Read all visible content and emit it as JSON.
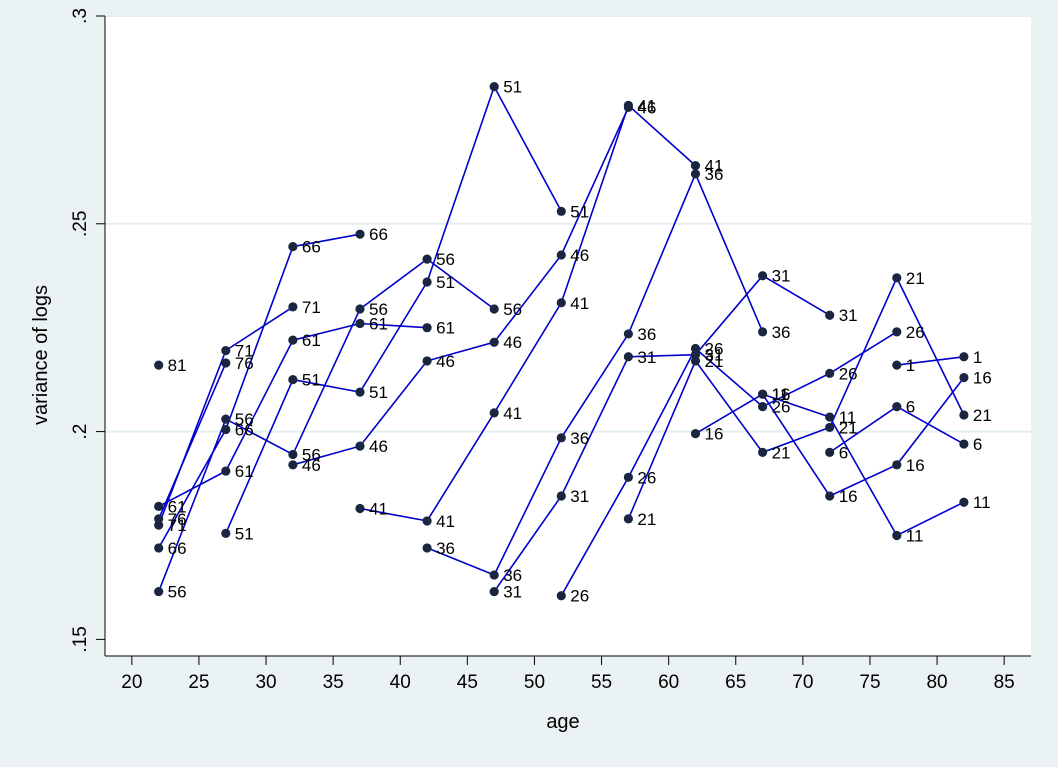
{
  "chart_data": {
    "type": "line",
    "xlabel": "age",
    "ylabel": "variance of logs",
    "xlim": [
      18,
      87
    ],
    "ylim": [
      0.146,
      0.3
    ],
    "x_ticks": [
      20,
      25,
      30,
      35,
      40,
      45,
      50,
      55,
      60,
      65,
      70,
      75,
      80,
      85
    ],
    "x_tick_labels": [
      "20",
      "25",
      "30",
      "35",
      "40",
      "45",
      "50",
      "55",
      "60",
      "65",
      "70",
      "75",
      "80",
      "85"
    ],
    "y_ticks": [
      0.15,
      0.2,
      0.25,
      0.3
    ],
    "y_tick_labels": [
      ".15",
      ".2",
      ".25",
      ".3"
    ],
    "grid": "horizontal",
    "line_color": "#0000cc",
    "marker_color": "#1a2640",
    "series": [
      {
        "label": "1",
        "points": [
          [
            77,
            0.216
          ],
          [
            82,
            0.218
          ]
        ]
      },
      {
        "label": "6",
        "points": [
          [
            72,
            0.195
          ],
          [
            77,
            0.206
          ],
          [
            82,
            0.197
          ]
        ]
      },
      {
        "label": "11",
        "points": [
          [
            67,
            0.209
          ],
          [
            72,
            0.2035
          ],
          [
            77,
            0.175
          ],
          [
            82,
            0.183
          ]
        ]
      },
      {
        "label": "16",
        "points": [
          [
            62,
            0.1995
          ],
          [
            67,
            0.209
          ],
          [
            72,
            0.1845
          ],
          [
            77,
            0.192
          ],
          [
            82,
            0.213
          ]
        ]
      },
      {
        "label": "21",
        "points": [
          [
            57,
            0.179
          ],
          [
            62,
            0.217
          ],
          [
            67,
            0.195
          ],
          [
            72,
            0.201
          ],
          [
            77,
            0.237
          ],
          [
            82,
            0.204
          ]
        ]
      },
      {
        "label": "26",
        "points": [
          [
            52,
            0.1605
          ],
          [
            57,
            0.189
          ],
          [
            62,
            0.22
          ],
          [
            67,
            0.206
          ],
          [
            72,
            0.214
          ],
          [
            77,
            0.224
          ]
        ]
      },
      {
        "label": "31",
        "points": [
          [
            47,
            0.1615
          ],
          [
            52,
            0.1845
          ],
          [
            57,
            0.218
          ],
          [
            62,
            0.2185
          ],
          [
            67,
            0.2375
          ],
          [
            72,
            0.228
          ]
        ]
      },
      {
        "label": "36",
        "points": [
          [
            42,
            0.172
          ],
          [
            47,
            0.1655
          ],
          [
            52,
            0.1985
          ],
          [
            57,
            0.2235
          ],
          [
            62,
            0.262
          ],
          [
            67,
            0.224
          ]
        ]
      },
      {
        "label": "41",
        "points": [
          [
            37,
            0.1815
          ],
          [
            42,
            0.1785
          ],
          [
            47,
            0.2045
          ],
          [
            52,
            0.231
          ],
          [
            57,
            0.2785
          ],
          [
            62,
            0.264
          ]
        ]
      },
      {
        "label": "46",
        "points": [
          [
            32,
            0.192
          ],
          [
            37,
            0.1965
          ],
          [
            42,
            0.217
          ],
          [
            47,
            0.2215
          ],
          [
            52,
            0.2425
          ],
          [
            57,
            0.278
          ]
        ]
      },
      {
        "label": "51",
        "points": [
          [
            27,
            0.1755
          ],
          [
            32,
            0.2125
          ],
          [
            37,
            0.2095
          ],
          [
            42,
            0.236
          ],
          [
            47,
            0.283
          ],
          [
            52,
            0.253
          ]
        ]
      },
      {
        "label": "56",
        "points": [
          [
            22,
            0.1615
          ],
          [
            27,
            0.203
          ],
          [
            32,
            0.1945
          ],
          [
            37,
            0.2295
          ],
          [
            42,
            0.2415
          ],
          [
            47,
            0.2295
          ]
        ]
      },
      {
        "label": "61",
        "points": [
          [
            22,
            0.182
          ],
          [
            27,
            0.1905
          ],
          [
            32,
            0.222
          ],
          [
            37,
            0.226
          ],
          [
            42,
            0.225
          ]
        ]
      },
      {
        "label": "66",
        "points": [
          [
            22,
            0.172
          ],
          [
            27,
            0.2005
          ],
          [
            32,
            0.2445
          ],
          [
            37,
            0.2475
          ]
        ]
      },
      {
        "label": "71",
        "points": [
          [
            22,
            0.1775
          ],
          [
            27,
            0.2195
          ],
          [
            32,
            0.23
          ]
        ]
      },
      {
        "label": "76",
        "points": [
          [
            22,
            0.179
          ],
          [
            27,
            0.2165
          ]
        ]
      },
      {
        "label": "81",
        "points": [
          [
            22,
            0.216
          ]
        ]
      }
    ]
  }
}
